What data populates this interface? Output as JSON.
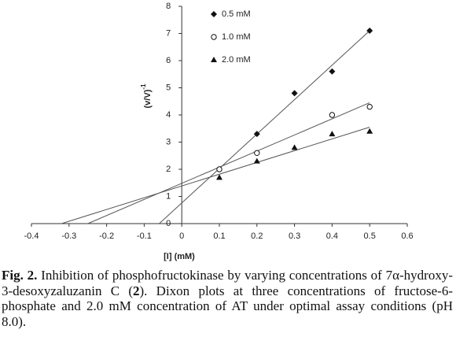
{
  "chart_data": {
    "type": "scatter",
    "x_label": "[I] (mM)",
    "y_label": "(v/V)",
    "y_label_sup": "-1",
    "xlim": [
      -0.4,
      0.6
    ],
    "xticks": [
      -0.4,
      -0.3,
      -0.2,
      -0.1,
      0,
      0.1,
      0.2,
      0.3,
      0.4,
      0.5,
      0.6
    ],
    "ylim": [
      0,
      8
    ],
    "yticks": [
      0,
      1,
      2,
      3,
      4,
      5,
      6,
      7,
      8
    ],
    "legend": "top-left",
    "series": [
      {
        "name": "0.5 mM",
        "color": "#111111",
        "marker": "diamond",
        "x": [
          0.2,
          0.3,
          0.4,
          0.5
        ],
        "values": [
          3.3,
          4.8,
          5.6,
          7.1
        ],
        "fit": {
          "x": [
            -0.06,
            0.5
          ],
          "y": [
            0,
            7.1
          ]
        }
      },
      {
        "name": "1.0 mM",
        "color": "#111111",
        "marker": "circle",
        "x": [
          0.1,
          0.2,
          0.4,
          0.5
        ],
        "values": [
          2.0,
          2.6,
          4.0,
          4.3
        ],
        "fit": {
          "x": [
            -0.25,
            0.5
          ],
          "y": [
            0,
            4.45
          ]
        }
      },
      {
        "name": "2.0 mM",
        "color": "#111111",
        "marker": "triangle",
        "x": [
          0.1,
          0.2,
          0.3,
          0.4,
          0.5
        ],
        "values": [
          1.7,
          2.3,
          2.8,
          3.3,
          3.4
        ],
        "fit": {
          "x": [
            -0.32,
            0.5
          ],
          "y": [
            0,
            3.55
          ]
        }
      }
    ]
  },
  "caption": {
    "label": "Fig. 2.",
    "text_1": " Inhibition of phosphofructokinase by varying concentrations of 7α-hydroxy-3-desoxyzaluzanin C (",
    "compound": "2",
    "text_2": "). Dixon plots at three concentrations of fructose-6-phosphate and 2.0 mM concentration of AT under optimal assay conditions (pH 8.0)."
  }
}
